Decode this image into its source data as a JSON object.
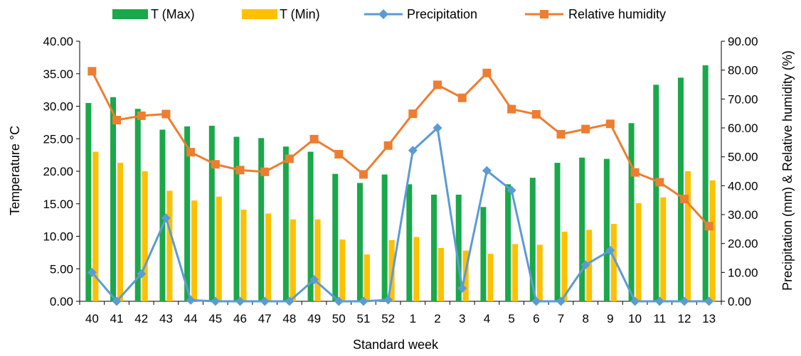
{
  "chart_data": {
    "type": "bar+line",
    "xlabel": "Standard week",
    "ylabel_left": "Temperature °C",
    "ylabel_right": "Precipitation (mm) & Relative humidity (%)",
    "left_axis": {
      "min": 0,
      "max": 40,
      "step": 5,
      "tick_labels": [
        "0.00",
        "5.00",
        "10.00",
        "15.00",
        "20.00",
        "25.00",
        "30.00",
        "35.00",
        "40.00"
      ]
    },
    "right_axis": {
      "min": 0,
      "max": 90,
      "step": 10,
      "tick_labels": [
        "0.00",
        "10.00",
        "20.00",
        "30.00",
        "40.00",
        "50.00",
        "60.00",
        "70.00",
        "80.00",
        "90.00"
      ]
    },
    "categories": [
      "40",
      "41",
      "42",
      "43",
      "44",
      "45",
      "46",
      "47",
      "48",
      "49",
      "50",
      "51",
      "52",
      "1",
      "2",
      "3",
      "4",
      "5",
      "6",
      "7",
      "8",
      "9",
      "10",
      "11",
      "12",
      "13"
    ],
    "legend_position": "top",
    "grid": false,
    "bar_series": [
      {
        "name": "T (Max)",
        "color": "#1aa84a",
        "values": [
          30.5,
          31.4,
          29.6,
          26.4,
          26.9,
          27.0,
          25.3,
          25.1,
          23.8,
          23.0,
          19.6,
          18.2,
          19.5,
          18.0,
          16.4,
          16.4,
          14.5,
          18.0,
          19.0,
          21.3,
          22.1,
          21.9,
          27.4,
          33.3,
          34.4,
          36.3
        ]
      },
      {
        "name": "T (Min)",
        "color": "#ffc000",
        "values": [
          23.0,
          21.3,
          20.0,
          17.0,
          15.5,
          16.1,
          14.1,
          13.5,
          12.6,
          12.6,
          9.5,
          7.2,
          9.4,
          9.9,
          8.2,
          7.8,
          7.3,
          8.8,
          8.7,
          10.7,
          11.0,
          11.9,
          15.1,
          16.0,
          20.0,
          18.6
        ]
      }
    ],
    "line_series": [
      {
        "name": "Precipitation",
        "color": "#5b9bd5",
        "marker": "diamond",
        "axis": "right",
        "values": [
          10.0,
          0.0,
          9.5,
          28.8,
          0.4,
          0.0,
          0.0,
          0.0,
          0.0,
          7.5,
          0.0,
          0.0,
          0.5,
          52.2,
          60.0,
          4.5,
          45.2,
          38.4,
          0.0,
          0.0,
          12.6,
          17.6,
          0.0,
          0.0,
          0.0,
          0.0
        ]
      },
      {
        "name": "Relative humidity",
        "color": "#ed7d31",
        "marker": "square",
        "axis": "right",
        "values": [
          79.6,
          62.7,
          64.2,
          64.8,
          51.6,
          47.4,
          45.4,
          44.8,
          49.3,
          56.1,
          50.9,
          43.9,
          53.9,
          64.9,
          74.9,
          70.4,
          79.0,
          66.5,
          64.7,
          57.8,
          59.6,
          61.4,
          44.6,
          41.2,
          35.4,
          26.0
        ]
      }
    ]
  }
}
